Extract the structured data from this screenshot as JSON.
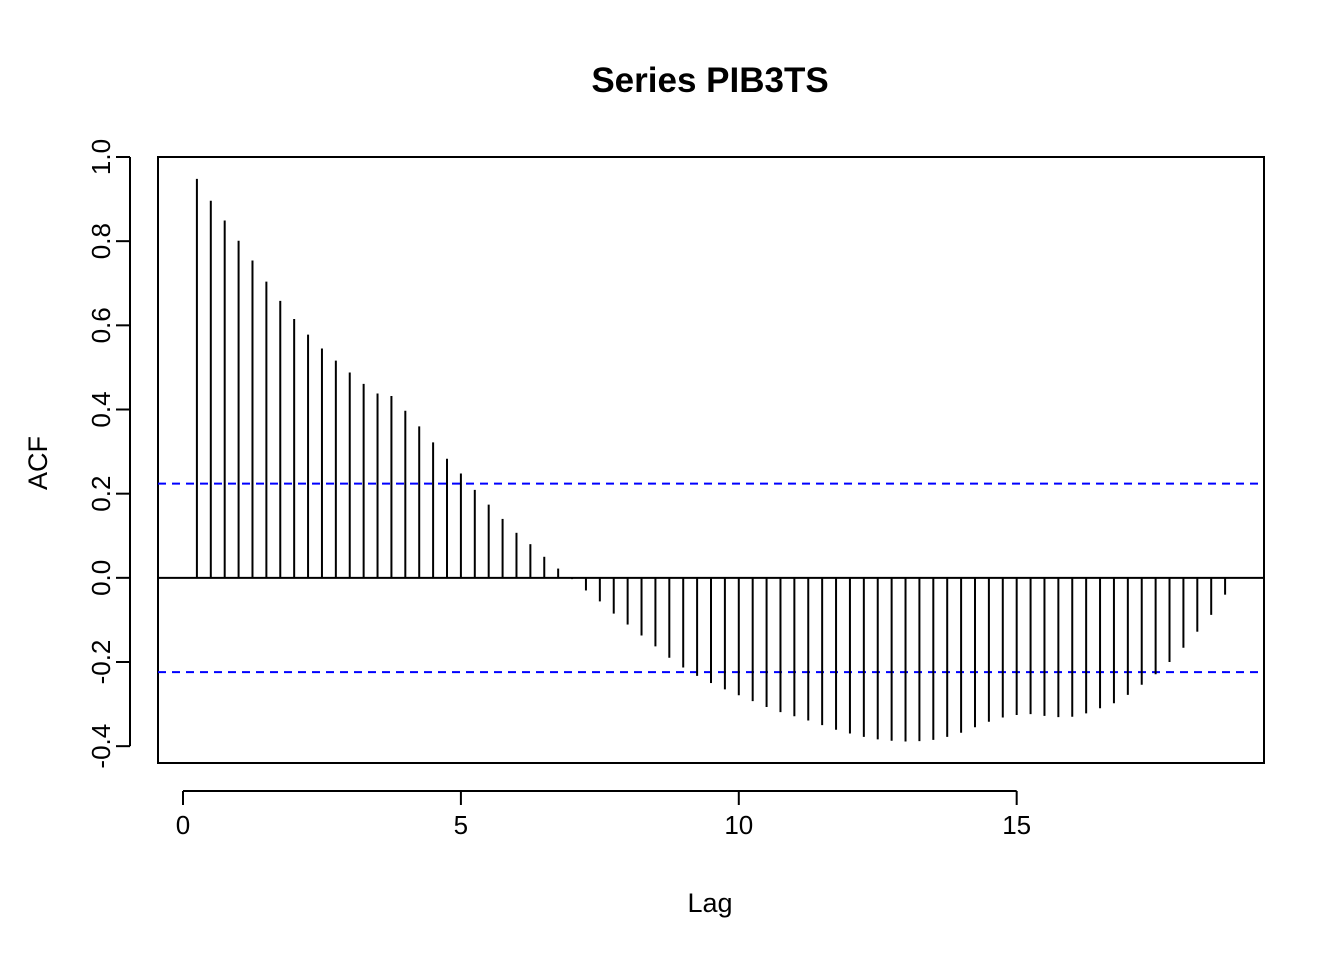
{
  "chart_data": {
    "type": "bar",
    "title": "Series PIB3TS",
    "xlabel": "Lag",
    "ylabel": "ACF",
    "xlim": [
      -0.45,
      19.45
    ],
    "ylim": [
      -0.44,
      1.0
    ],
    "xticks": [
      0,
      5,
      10,
      15
    ],
    "xtick_labels": [
      "0",
      "5",
      "10",
      "15"
    ],
    "yticks": [
      -0.4,
      -0.2,
      0.0,
      0.2,
      0.4,
      0.6,
      0.8,
      1.0
    ],
    "ytick_labels": [
      "-0.4",
      "-0.2",
      "0.0",
      "0.2",
      "0.4",
      "0.6",
      "0.8",
      "1.0"
    ],
    "confidence_bounds": [
      0.224,
      -0.224
    ],
    "colors": {
      "bars": "#000000",
      "confidence": "#0000ff",
      "zero_line": "#000000"
    },
    "series": [
      {
        "x": [
          0.25,
          0.5,
          0.75,
          1.0,
          1.25,
          1.5,
          1.75,
          2.0,
          2.25,
          2.5,
          2.75,
          3.0,
          3.25,
          3.5,
          3.75,
          4.0,
          4.25,
          4.5,
          4.75,
          5.0,
          5.25,
          5.5,
          5.75,
          6.0,
          6.25,
          6.5,
          6.75,
          7.0,
          7.25,
          7.5,
          7.75,
          8.0,
          8.25,
          8.5,
          8.75,
          9.0,
          9.25,
          9.5,
          9.75,
          10.0,
          10.25,
          10.5,
          10.75,
          11.0,
          11.25,
          11.5,
          11.75,
          12.0,
          12.25,
          12.5,
          12.75,
          13.0,
          13.25,
          13.5,
          13.75,
          14.0,
          14.25,
          14.5,
          14.75,
          15.0,
          15.25,
          15.5,
          15.75,
          16.0,
          16.25,
          16.5,
          16.75,
          17.0,
          17.25,
          17.5,
          17.75,
          18.0,
          18.25,
          18.5,
          18.75
        ],
        "values": [
          0.948,
          0.896,
          0.849,
          0.801,
          0.754,
          0.704,
          0.658,
          0.615,
          0.578,
          0.545,
          0.516,
          0.488,
          0.461,
          0.438,
          0.432,
          0.397,
          0.36,
          0.322,
          0.283,
          0.248,
          0.209,
          0.174,
          0.14,
          0.107,
          0.08,
          0.05,
          0.022,
          -0.003,
          -0.03,
          -0.056,
          -0.085,
          -0.111,
          -0.137,
          -0.163,
          -0.19,
          -0.213,
          -0.233,
          -0.25,
          -0.265,
          -0.279,
          -0.293,
          -0.307,
          -0.319,
          -0.329,
          -0.339,
          -0.35,
          -0.361,
          -0.37,
          -0.378,
          -0.384,
          -0.387,
          -0.389,
          -0.388,
          -0.385,
          -0.378,
          -0.368,
          -0.355,
          -0.342,
          -0.332,
          -0.326,
          -0.324,
          -0.328,
          -0.331,
          -0.33,
          -0.322,
          -0.31,
          -0.298,
          -0.278,
          -0.254,
          -0.229,
          -0.2,
          -0.166,
          -0.128,
          -0.088,
          -0.04
        ]
      }
    ]
  }
}
